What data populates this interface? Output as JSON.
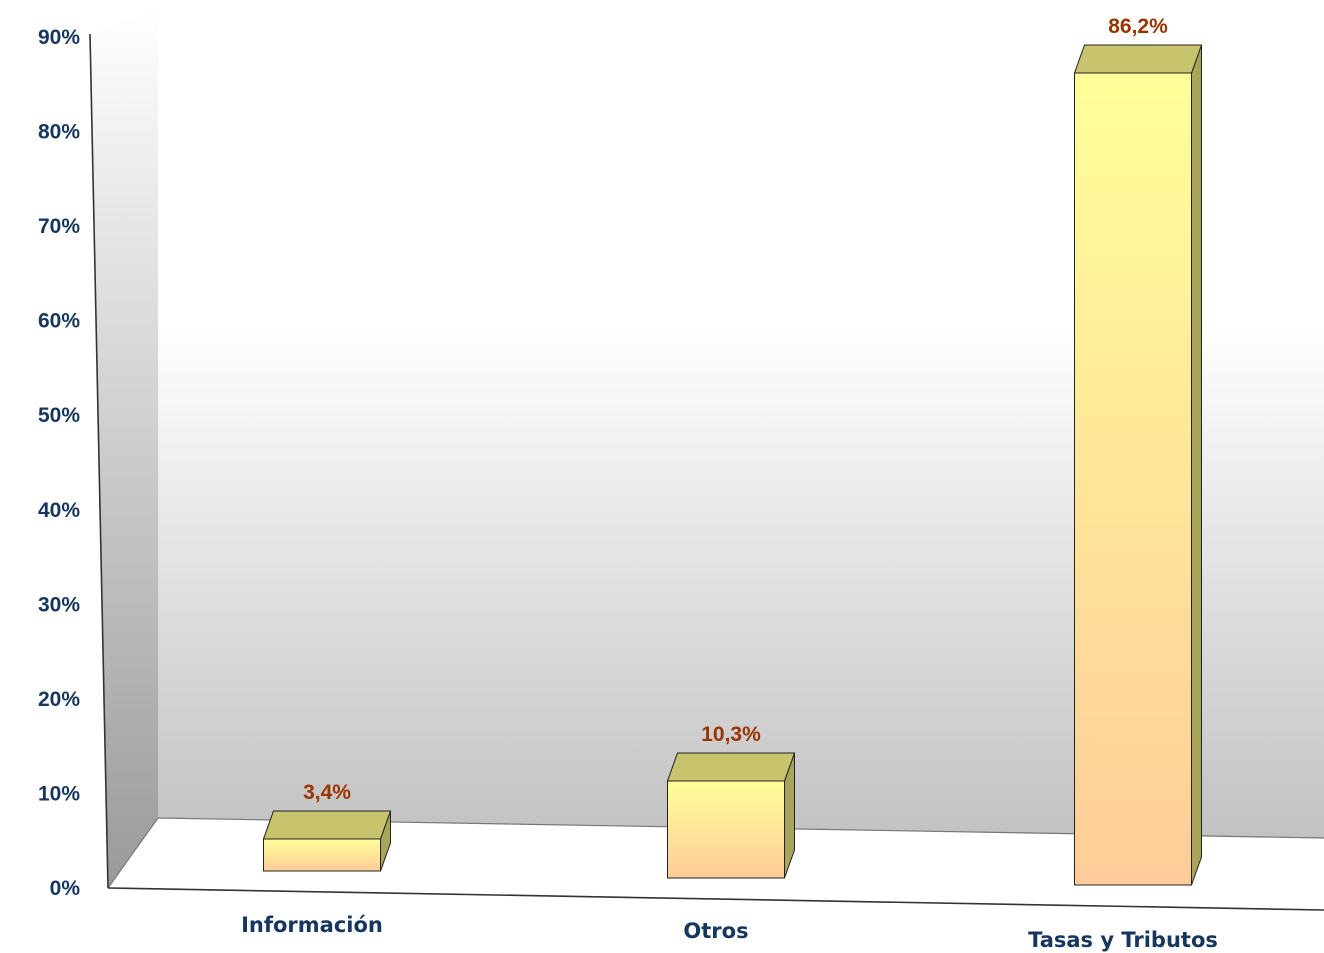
{
  "chart_data": {
    "type": "bar",
    "categories": [
      "Información",
      "Otros",
      "Tasas y Tributos"
    ],
    "values": [
      3.4,
      10.3,
      86.2
    ],
    "data_labels": [
      "3,4%",
      "10,3%",
      "86,2%"
    ],
    "ylim": [
      0,
      90
    ],
    "y_ticks": [
      "0%",
      "10%",
      "20%",
      "30%",
      "40%",
      "50%",
      "60%",
      "70%",
      "80%",
      "90%"
    ],
    "grid": false,
    "legend": "none",
    "three_d": true,
    "colors": {
      "bar_top": "#ffff99",
      "bar_bottom": "#ffcc99",
      "bar_cap": "#c8c46e",
      "bar_side": "#a8a45a",
      "tick_text": "#17365d",
      "label_text": "#993300",
      "wall_dark": "#a6a6a6",
      "wall_light": "#ffffff"
    }
  }
}
